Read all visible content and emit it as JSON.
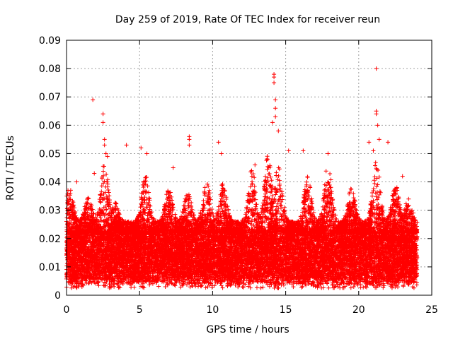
{
  "chart_data": {
    "type": "scatter",
    "title": "Day 259 of 2019, Rate Of TEC Index for receiver reun",
    "xlabel": "GPS time / hours",
    "ylabel": "ROTI / TECUs",
    "xlim": [
      0,
      25
    ],
    "ylim": [
      0,
      0.09
    ],
    "xticks": [
      0,
      5,
      10,
      15,
      20,
      25
    ],
    "xtick_labels": [
      "0",
      "5",
      "10",
      "15",
      "20",
      "25"
    ],
    "yticks": [
      0,
      0.01,
      0.02,
      0.03,
      0.04,
      0.05,
      0.06,
      0.07,
      0.08,
      0.09
    ],
    "ytick_labels": [
      "0",
      "0.01",
      "0.02",
      "0.03",
      "0.04",
      "0.05",
      "0.06",
      "0.07",
      "0.08",
      "0.09"
    ],
    "grid": true,
    "marker": "+",
    "color": "#ff0000",
    "data_x_range": [
      0,
      24
    ],
    "baseline_band": [
      0.005,
      0.022
    ],
    "outliers": [
      {
        "x": 0.1,
        "y": 0.037
      },
      {
        "x": 0.7,
        "y": 0.04
      },
      {
        "x": 1.8,
        "y": 0.069
      },
      {
        "x": 1.9,
        "y": 0.043
      },
      {
        "x": 2.5,
        "y": 0.064
      },
      {
        "x": 2.5,
        "y": 0.061
      },
      {
        "x": 2.6,
        "y": 0.055
      },
      {
        "x": 2.6,
        "y": 0.053
      },
      {
        "x": 2.7,
        "y": 0.05
      },
      {
        "x": 2.8,
        "y": 0.049
      },
      {
        "x": 4.1,
        "y": 0.053
      },
      {
        "x": 5.1,
        "y": 0.052
      },
      {
        "x": 5.5,
        "y": 0.05
      },
      {
        "x": 8.4,
        "y": 0.056
      },
      {
        "x": 8.4,
        "y": 0.055
      },
      {
        "x": 8.4,
        "y": 0.053
      },
      {
        "x": 10.4,
        "y": 0.054
      },
      {
        "x": 10.6,
        "y": 0.05
      },
      {
        "x": 14.2,
        "y": 0.078
      },
      {
        "x": 14.2,
        "y": 0.077
      },
      {
        "x": 14.2,
        "y": 0.075
      },
      {
        "x": 14.3,
        "y": 0.069
      },
      {
        "x": 14.3,
        "y": 0.066
      },
      {
        "x": 14.3,
        "y": 0.063
      },
      {
        "x": 14.1,
        "y": 0.061
      },
      {
        "x": 14.5,
        "y": 0.058
      },
      {
        "x": 15.2,
        "y": 0.051
      },
      {
        "x": 16.2,
        "y": 0.051
      },
      {
        "x": 17.9,
        "y": 0.05
      },
      {
        "x": 20.7,
        "y": 0.054
      },
      {
        "x": 21.0,
        "y": 0.051
      },
      {
        "x": 21.2,
        "y": 0.08
      },
      {
        "x": 21.2,
        "y": 0.065
      },
      {
        "x": 21.2,
        "y": 0.064
      },
      {
        "x": 21.3,
        "y": 0.06
      },
      {
        "x": 21.4,
        "y": 0.055
      },
      {
        "x": 22.0,
        "y": 0.054
      },
      {
        "x": 23.0,
        "y": 0.042
      },
      {
        "x": 7.3,
        "y": 0.045
      },
      {
        "x": 12.9,
        "y": 0.046
      }
    ],
    "activity_peaks": [
      {
        "x": 0.2,
        "max": 0.038
      },
      {
        "x": 1.5,
        "max": 0.035
      },
      {
        "x": 2.6,
        "max": 0.048
      },
      {
        "x": 3.3,
        "max": 0.033
      },
      {
        "x": 5.4,
        "max": 0.043
      },
      {
        "x": 7.0,
        "max": 0.038
      },
      {
        "x": 8.3,
        "max": 0.037
      },
      {
        "x": 9.6,
        "max": 0.04
      },
      {
        "x": 10.7,
        "max": 0.04
      },
      {
        "x": 12.7,
        "max": 0.045
      },
      {
        "x": 13.8,
        "max": 0.05
      },
      {
        "x": 14.5,
        "max": 0.048
      },
      {
        "x": 16.5,
        "max": 0.042
      },
      {
        "x": 17.9,
        "max": 0.047
      },
      {
        "x": 19.5,
        "max": 0.038
      },
      {
        "x": 21.2,
        "max": 0.048
      },
      {
        "x": 22.5,
        "max": 0.04
      },
      {
        "x": 23.4,
        "max": 0.034
      }
    ]
  }
}
